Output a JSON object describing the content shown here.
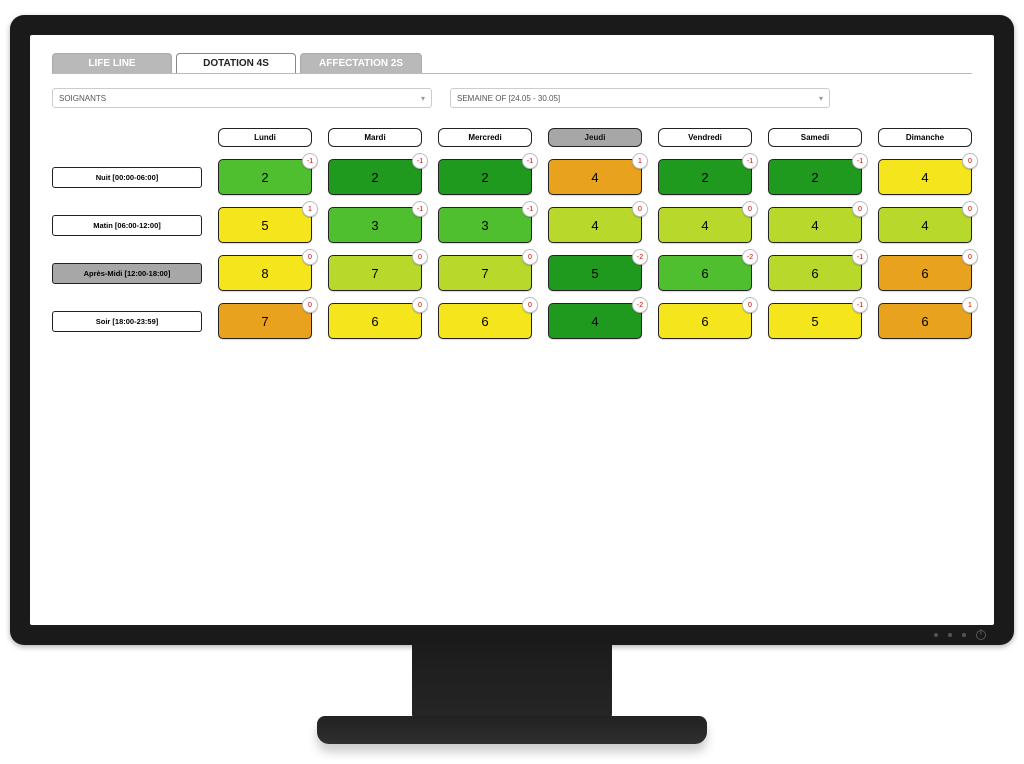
{
  "tabs": [
    {
      "label": "LIFE LINE",
      "active": false
    },
    {
      "label": "DOTATION 4S",
      "active": true
    },
    {
      "label": "AFFECTATION 2S",
      "active": false
    }
  ],
  "filters": {
    "role": "SOIGNANTS",
    "week": "SEMAINE OF [24.05 - 30.05]"
  },
  "days": [
    {
      "label": "Lundi",
      "highlight": false
    },
    {
      "label": "Mardi",
      "highlight": false
    },
    {
      "label": "Mercredi",
      "highlight": false
    },
    {
      "label": "Jeudi",
      "highlight": true
    },
    {
      "label": "Vendredi",
      "highlight": false
    },
    {
      "label": "Samedi",
      "highlight": false
    },
    {
      "label": "Dimanche",
      "highlight": false
    }
  ],
  "shifts": [
    {
      "label": "Nuit [00:00-06:00]",
      "highlight": false
    },
    {
      "label": "Matin [06:00-12:00]",
      "highlight": false
    },
    {
      "label": "Après-Midi [12:00-18:00]",
      "highlight": true
    },
    {
      "label": "Soir [18:00-23:59]",
      "highlight": false
    }
  ],
  "colors": {
    "dark_green": "#1f9a1f",
    "green": "#4fbf2f",
    "yellowgreen": "#b8d92b",
    "yellow": "#f4e51d",
    "orange": "#e9a21e",
    "dark_orange": "#e18a18"
  },
  "grid": [
    [
      {
        "value": 2,
        "badge": "-1",
        "color": "green"
      },
      {
        "value": 2,
        "badge": "-1",
        "color": "dark_green"
      },
      {
        "value": 2,
        "badge": "-1",
        "color": "dark_green"
      },
      {
        "value": 4,
        "badge": "1",
        "color": "orange"
      },
      {
        "value": 2,
        "badge": "-1",
        "color": "dark_green"
      },
      {
        "value": 2,
        "badge": "-1",
        "color": "dark_green"
      },
      {
        "value": 4,
        "badge": "0",
        "color": "yellow"
      }
    ],
    [
      {
        "value": 5,
        "badge": "1",
        "color": "yellow"
      },
      {
        "value": 3,
        "badge": "-1",
        "color": "green"
      },
      {
        "value": 3,
        "badge": "-1",
        "color": "green"
      },
      {
        "value": 4,
        "badge": "0",
        "color": "yellowgreen"
      },
      {
        "value": 4,
        "badge": "0",
        "color": "yellowgreen"
      },
      {
        "value": 4,
        "badge": "0",
        "color": "yellowgreen"
      },
      {
        "value": 4,
        "badge": "0",
        "color": "yellowgreen"
      }
    ],
    [
      {
        "value": 8,
        "badge": "0",
        "color": "yellow"
      },
      {
        "value": 7,
        "badge": "0",
        "color": "yellowgreen"
      },
      {
        "value": 7,
        "badge": "0",
        "color": "yellowgreen"
      },
      {
        "value": 5,
        "badge": "-2",
        "color": "dark_green"
      },
      {
        "value": 6,
        "badge": "-2",
        "color": "green"
      },
      {
        "value": 6,
        "badge": "-1",
        "color": "yellowgreen"
      },
      {
        "value": 6,
        "badge": "0",
        "color": "orange"
      }
    ],
    [
      {
        "value": 7,
        "badge": "0",
        "color": "orange"
      },
      {
        "value": 6,
        "badge": "0",
        "color": "yellow"
      },
      {
        "value": 6,
        "badge": "0",
        "color": "yellow"
      },
      {
        "value": 4,
        "badge": "-2",
        "color": "dark_green"
      },
      {
        "value": 6,
        "badge": "0",
        "color": "yellow"
      },
      {
        "value": 5,
        "badge": "-1",
        "color": "yellow"
      },
      {
        "value": 6,
        "badge": "1",
        "color": "orange"
      }
    ]
  ]
}
